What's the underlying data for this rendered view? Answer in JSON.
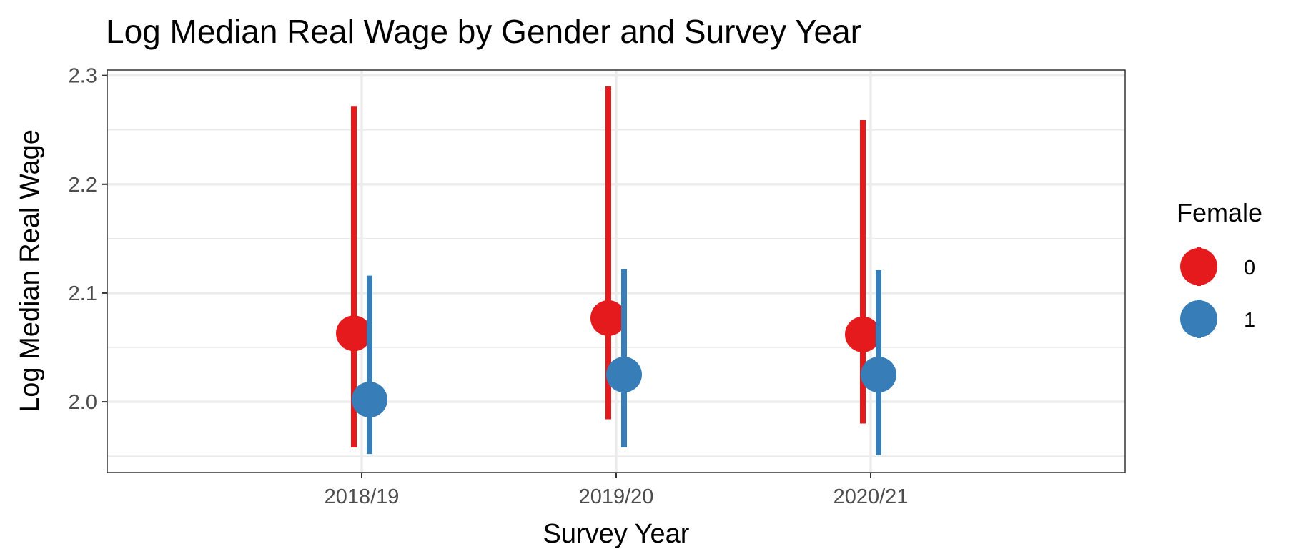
{
  "chart_data": {
    "type": "pointrange",
    "title": "Log Median Real Wage by Gender and Survey Year",
    "xlabel": "Survey Year",
    "ylabel": "Log Median Real Wage",
    "categories": [
      "2018/19",
      "2019/20",
      "2020/21"
    ],
    "ylim": [
      1.935,
      2.305
    ],
    "yticks": [
      2.0,
      2.1,
      2.2,
      2.3
    ],
    "ytick_labels": [
      "2.0",
      "2.1",
      "2.2",
      "2.3"
    ],
    "grid": true,
    "legend": {
      "title": "Female",
      "placement": "right"
    },
    "series": [
      {
        "name": "0",
        "color": "#E41A1C",
        "values": [
          2.063,
          2.077,
          2.062
        ],
        "lower": [
          1.958,
          1.984,
          1.98
        ],
        "upper": [
          2.272,
          2.29,
          2.259
        ]
      },
      {
        "name": "1",
        "color": "#377EB8",
        "values": [
          2.002,
          2.025,
          2.025
        ],
        "lower": [
          1.952,
          1.958,
          1.951
        ],
        "upper": [
          2.116,
          2.122,
          2.121
        ]
      }
    ]
  }
}
